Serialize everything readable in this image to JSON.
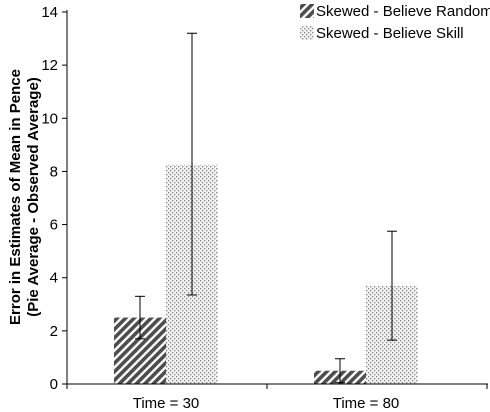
{
  "chart_data": {
    "type": "bar",
    "title": "",
    "xlabel": "",
    "ylabel_lines": [
      "Error in Estimates of Mean in Pence",
      "(Pie Average - Observed Average)"
    ],
    "categories": [
      "Time = 30",
      "Time = 80"
    ],
    "ylim": [
      0,
      14
    ],
    "yticks": [
      "0",
      "2",
      "4",
      "6",
      "8",
      "10",
      "12",
      "14"
    ],
    "grid": false,
    "legend_position": "top-right",
    "series": [
      {
        "name": "Skewed - Believe Random",
        "pattern": "diagonal-hatch",
        "color": "#555555",
        "values": [
          2.5,
          0.5
        ],
        "error_low": [
          1.7,
          0.05
        ],
        "error_high": [
          3.3,
          0.95
        ]
      },
      {
        "name": "Skewed - Believe Skill",
        "pattern": "dotted",
        "color": "#9a9a9a",
        "values": [
          8.25,
          3.7
        ],
        "error_low": [
          3.35,
          1.65
        ],
        "error_high": [
          13.2,
          5.75
        ]
      }
    ]
  }
}
